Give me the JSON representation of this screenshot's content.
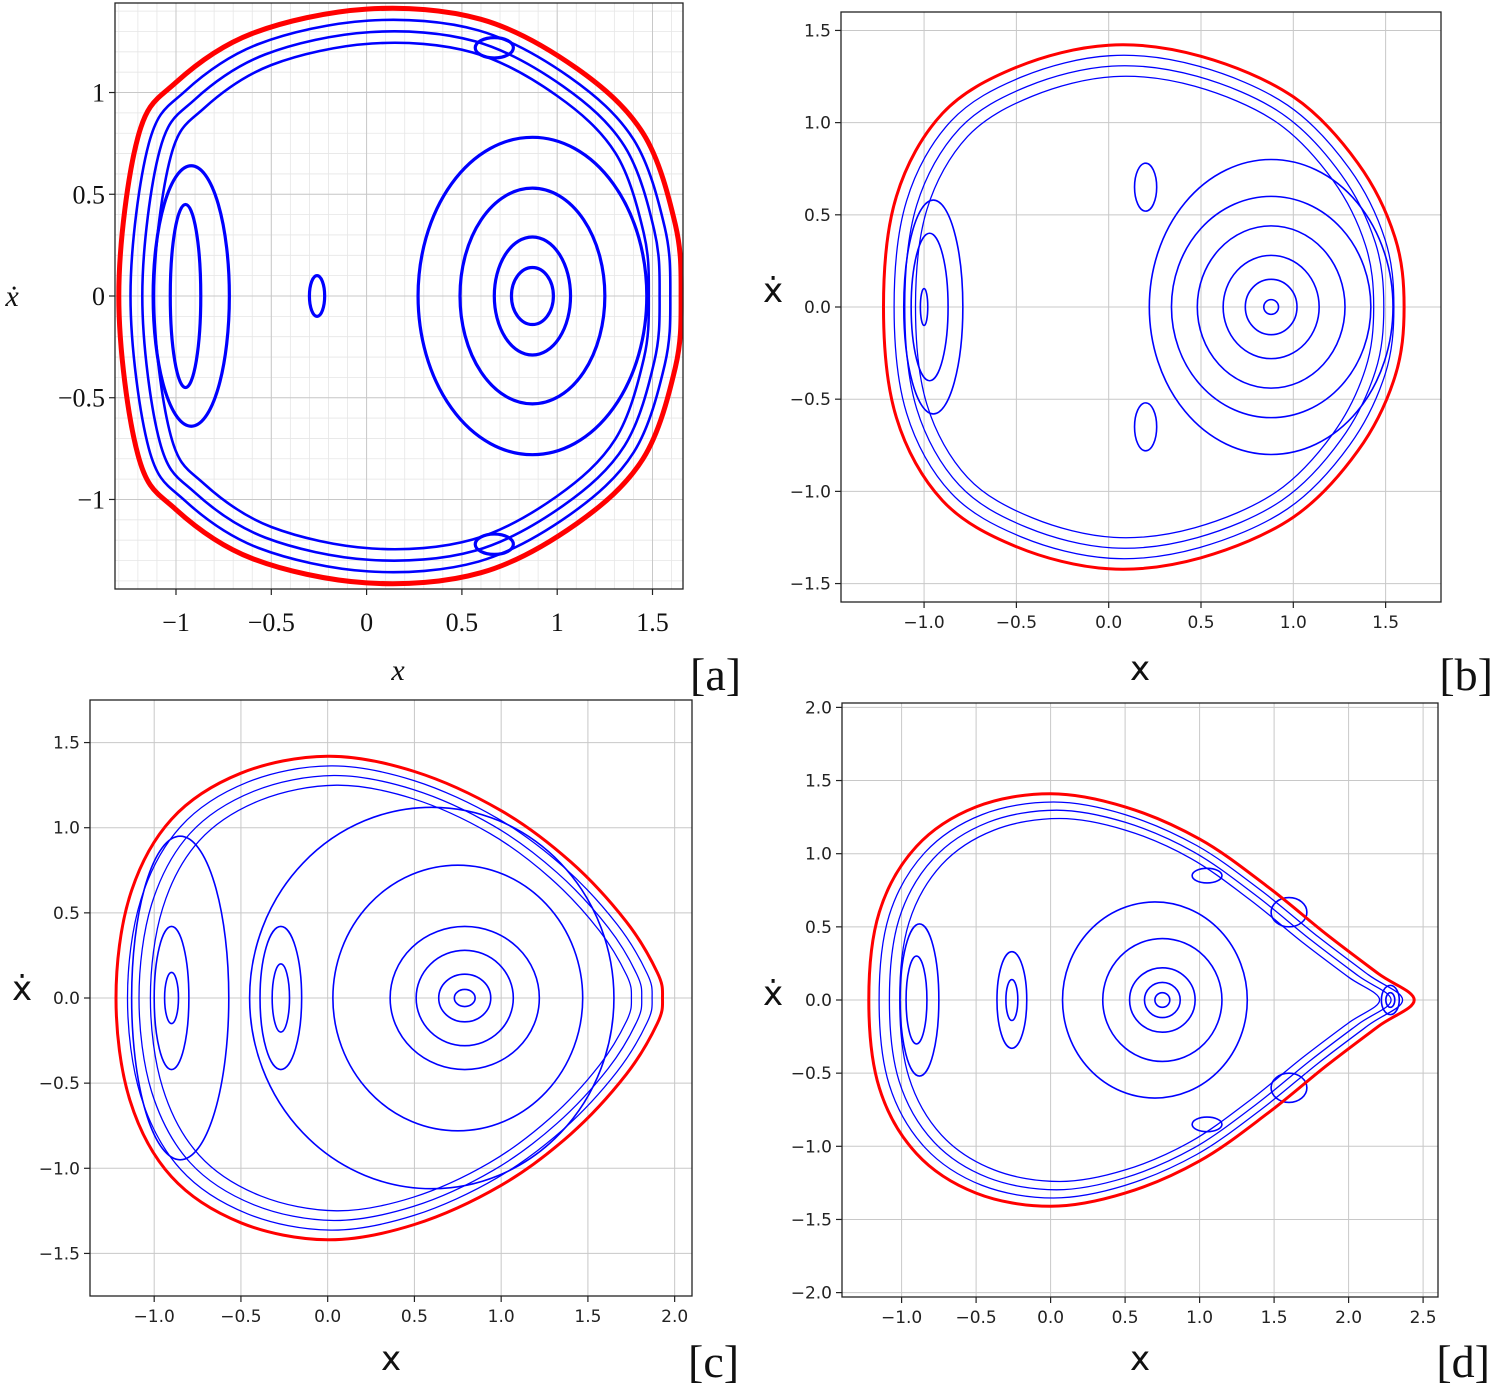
{
  "chart_data": [
    {
      "type": "line",
      "panel_tag": "[a]",
      "style": "serif",
      "xlabel": "x",
      "ylabel": "ẋ",
      "xlim": [
        -1.32,
        1.66
      ],
      "ylim": [
        -1.44,
        1.44
      ],
      "xticks": [
        {
          "v": -1,
          "t": "−1"
        },
        {
          "v": -0.5,
          "t": "−0.5"
        },
        {
          "v": 0,
          "t": "0"
        },
        {
          "v": 0.5,
          "t": "0.5"
        },
        {
          "v": 1,
          "t": "1"
        },
        {
          "v": 1.5,
          "t": "1.5"
        }
      ],
      "yticks": [
        {
          "v": -1,
          "t": "−1"
        },
        {
          "v": -0.5,
          "t": "−0.5"
        },
        {
          "v": 0,
          "t": "0"
        },
        {
          "v": 0.5,
          "t": "0.5"
        },
        {
          "v": 1,
          "t": "1"
        }
      ],
      "grid": "major+minor",
      "boundary": {
        "color": "#ff0000",
        "points": [
          [
            -1.3,
            0
          ],
          [
            -1.2,
            0.78
          ],
          [
            -1.0,
            1.05
          ],
          [
            -0.6,
            1.29
          ],
          [
            0,
            1.41
          ],
          [
            0.6,
            1.36
          ],
          [
            1.1,
            1.12
          ],
          [
            1.45,
            0.8
          ],
          [
            1.62,
            0.35
          ],
          [
            1.65,
            0
          ],
          [
            1.62,
            -0.35
          ],
          [
            1.45,
            -0.8
          ],
          [
            1.1,
            -1.12
          ],
          [
            0.6,
            -1.36
          ],
          [
            0,
            -1.41
          ],
          [
            -0.6,
            -1.29
          ],
          [
            -1.0,
            -1.05
          ],
          [
            -1.2,
            -0.78
          ]
        ]
      },
      "orbits": {
        "color": "#0000ff",
        "islands": [
          {
            "cx": -0.95,
            "cy": 0,
            "rx": 0.08,
            "ry": 0.45
          },
          {
            "cx": -0.92,
            "cy": 0,
            "rx": 0.2,
            "ry": 0.64
          },
          {
            "cx": -0.26,
            "cy": 0,
            "rx": 0.04,
            "ry": 0.1
          },
          {
            "cx": 0.87,
            "cy": 0,
            "rx": 0.11,
            "ry": 0.14
          },
          {
            "cx": 0.87,
            "cy": 0,
            "rx": 0.2,
            "ry": 0.29
          },
          {
            "cx": 0.87,
            "cy": 0,
            "rx": 0.38,
            "ry": 0.53
          },
          {
            "cx": 0.87,
            "cy": 0,
            "rx": 0.6,
            "ry": 0.78
          },
          {
            "cx": 0.67,
            "cy": 1.22,
            "rx": 0.1,
            "ry": 0.05
          },
          {
            "cx": 0.67,
            "cy": -1.22,
            "rx": 0.1,
            "ry": 0.05
          }
        ]
      }
    },
    {
      "type": "line",
      "panel_tag": "[b]",
      "style": "sans",
      "xlabel": "x",
      "ylabel": "ẋ",
      "xlim": [
        -1.45,
        1.8
      ],
      "ylim": [
        -1.6,
        1.6
      ],
      "xticks": [
        {
          "v": -1,
          "t": "−1.0"
        },
        {
          "v": -0.5,
          "t": "−0.5"
        },
        {
          "v": 0,
          "t": "0.0"
        },
        {
          "v": 0.5,
          "t": "0.5"
        },
        {
          "v": 1,
          "t": "1.0"
        },
        {
          "v": 1.5,
          "t": "1.5"
        }
      ],
      "yticks": [
        {
          "v": -1.5,
          "t": "−1.5"
        },
        {
          "v": -1,
          "t": "−1.0"
        },
        {
          "v": -0.5,
          "t": "−0.5"
        },
        {
          "v": 0,
          "t": "0.0"
        },
        {
          "v": 0.5,
          "t": "0.5"
        },
        {
          "v": 1,
          "t": "1.0"
        },
        {
          "v": 1.5,
          "t": "1.5"
        }
      ],
      "grid": "major",
      "boundary": {
        "color": "#ff0000",
        "points": [
          [
            -1.22,
            0
          ],
          [
            -1.15,
            0.6
          ],
          [
            -0.9,
            1.05
          ],
          [
            -0.5,
            1.3
          ],
          [
            0,
            1.42
          ],
          [
            0.5,
            1.36
          ],
          [
            1.0,
            1.14
          ],
          [
            1.35,
            0.78
          ],
          [
            1.55,
            0.38
          ],
          [
            1.6,
            0
          ],
          [
            1.55,
            -0.38
          ],
          [
            1.35,
            -0.78
          ],
          [
            1.0,
            -1.14
          ],
          [
            0.5,
            -1.36
          ],
          [
            0,
            -1.42
          ],
          [
            -0.5,
            -1.3
          ],
          [
            -0.9,
            -1.05
          ],
          [
            -1.15,
            -0.6
          ]
        ]
      },
      "orbits": {
        "color": "#0000ff",
        "islands": [
          {
            "cx": -1.0,
            "cy": 0,
            "rx": 0.02,
            "ry": 0.1
          },
          {
            "cx": -0.97,
            "cy": 0,
            "rx": 0.1,
            "ry": 0.4
          },
          {
            "cx": -0.95,
            "cy": 0,
            "rx": 0.16,
            "ry": 0.58
          },
          {
            "cx": 0.88,
            "cy": 0,
            "rx": 0.04,
            "ry": 0.04
          },
          {
            "cx": 0.88,
            "cy": 0,
            "rx": 0.14,
            "ry": 0.15
          },
          {
            "cx": 0.88,
            "cy": 0,
            "rx": 0.26,
            "ry": 0.28
          },
          {
            "cx": 0.88,
            "cy": 0,
            "rx": 0.4,
            "ry": 0.44
          },
          {
            "cx": 0.88,
            "cy": 0,
            "rx": 0.54,
            "ry": 0.6
          },
          {
            "cx": 0.88,
            "cy": 0,
            "rx": 0.66,
            "ry": 0.8
          },
          {
            "cx": 0.2,
            "cy": 0.65,
            "rx": 0.06,
            "ry": 0.13
          },
          {
            "cx": 0.2,
            "cy": -0.65,
            "rx": 0.06,
            "ry": 0.13
          }
        ]
      }
    },
    {
      "type": "line",
      "panel_tag": "[c]",
      "style": "sans",
      "xlabel": "x",
      "ylabel": "ẋ",
      "xlim": [
        -1.37,
        2.1
      ],
      "ylim": [
        -1.75,
        1.75
      ],
      "xticks": [
        {
          "v": -1,
          "t": "−1.0"
        },
        {
          "v": -0.5,
          "t": "−0.5"
        },
        {
          "v": 0,
          "t": "0.0"
        },
        {
          "v": 0.5,
          "t": "0.5"
        },
        {
          "v": 1,
          "t": "1.0"
        },
        {
          "v": 1.5,
          "t": "1.5"
        },
        {
          "v": 2,
          "t": "2.0"
        }
      ],
      "yticks": [
        {
          "v": -1.5,
          "t": "−1.5"
        },
        {
          "v": -1,
          "t": "−1.0"
        },
        {
          "v": -0.5,
          "t": "−0.5"
        },
        {
          "v": 0,
          "t": "0.0"
        },
        {
          "v": 0.5,
          "t": "0.5"
        },
        {
          "v": 1,
          "t": "1.0"
        },
        {
          "v": 1.5,
          "t": "1.5"
        }
      ],
      "grid": "major",
      "boundary": {
        "color": "#ff0000",
        "points": [
          [
            -1.22,
            0
          ],
          [
            -1.14,
            0.6
          ],
          [
            -0.9,
            1.05
          ],
          [
            -0.5,
            1.32
          ],
          [
            0,
            1.42
          ],
          [
            0.5,
            1.33
          ],
          [
            1.0,
            1.1
          ],
          [
            1.4,
            0.8
          ],
          [
            1.72,
            0.45
          ],
          [
            1.9,
            0.15
          ],
          [
            1.93,
            0
          ],
          [
            1.9,
            -0.15
          ],
          [
            1.72,
            -0.45
          ],
          [
            1.4,
            -0.8
          ],
          [
            1.0,
            -1.1
          ],
          [
            0.5,
            -1.33
          ],
          [
            0,
            -1.42
          ],
          [
            -0.5,
            -1.32
          ],
          [
            -0.9,
            -1.05
          ],
          [
            -1.14,
            -0.6
          ]
        ]
      },
      "orbits": {
        "color": "#0000ff",
        "islands": [
          {
            "cx": -0.9,
            "cy": 0,
            "rx": 0.04,
            "ry": 0.15
          },
          {
            "cx": -0.9,
            "cy": 0,
            "rx": 0.1,
            "ry": 0.42
          },
          {
            "cx": -0.85,
            "cy": 0,
            "rx": 0.28,
            "ry": 0.95
          },
          {
            "cx": -0.27,
            "cy": 0,
            "rx": 0.05,
            "ry": 0.2
          },
          {
            "cx": -0.27,
            "cy": 0,
            "rx": 0.12,
            "ry": 0.42
          },
          {
            "cx": 0.79,
            "cy": 0,
            "rx": 0.06,
            "ry": 0.05
          },
          {
            "cx": 0.79,
            "cy": 0,
            "rx": 0.15,
            "ry": 0.14
          },
          {
            "cx": 0.79,
            "cy": 0,
            "rx": 0.28,
            "ry": 0.28
          },
          {
            "cx": 0.79,
            "cy": 0,
            "rx": 0.43,
            "ry": 0.42
          },
          {
            "cx": 0.75,
            "cy": 0,
            "rx": 0.72,
            "ry": 0.78
          },
          {
            "cx": 0.6,
            "cy": 0,
            "rx": 1.05,
            "ry": 1.12
          }
        ]
      }
    },
    {
      "type": "line",
      "panel_tag": "[d]",
      "style": "sans",
      "xlabel": "x",
      "ylabel": "ẋ",
      "xlim": [
        -1.4,
        2.6
      ],
      "ylim": [
        -2.03,
        2.03
      ],
      "xticks": [
        {
          "v": -1,
          "t": "−1.0"
        },
        {
          "v": -0.5,
          "t": "−0.5"
        },
        {
          "v": 0,
          "t": "0.0"
        },
        {
          "v": 0.5,
          "t": "0.5"
        },
        {
          "v": 1,
          "t": "1.0"
        },
        {
          "v": 1.5,
          "t": "1.5"
        },
        {
          "v": 2,
          "t": "2.0"
        },
        {
          "v": 2.5,
          "t": "2.5"
        }
      ],
      "yticks": [
        {
          "v": -2,
          "t": "−2.0"
        },
        {
          "v": -1.5,
          "t": "−1.5"
        },
        {
          "v": -1,
          "t": "−1.0"
        },
        {
          "v": -0.5,
          "t": "−0.5"
        },
        {
          "v": 0,
          "t": "0.0"
        },
        {
          "v": 0.5,
          "t": "0.5"
        },
        {
          "v": 1,
          "t": "1.0"
        },
        {
          "v": 1.5,
          "t": "1.5"
        },
        {
          "v": 2,
          "t": "2.0"
        }
      ],
      "grid": "major",
      "boundary": {
        "color": "#ff0000",
        "points": [
          [
            -1.22,
            0
          ],
          [
            -1.15,
            0.6
          ],
          [
            -0.9,
            1.05
          ],
          [
            -0.5,
            1.32
          ],
          [
            0,
            1.41
          ],
          [
            0.5,
            1.32
          ],
          [
            1.0,
            1.1
          ],
          [
            1.45,
            0.78
          ],
          [
            1.85,
            0.45
          ],
          [
            2.2,
            0.18
          ],
          [
            2.44,
            0
          ],
          [
            2.2,
            -0.18
          ],
          [
            1.85,
            -0.45
          ],
          [
            1.45,
            -0.78
          ],
          [
            1.0,
            -1.1
          ],
          [
            0.5,
            -1.32
          ],
          [
            0,
            -1.41
          ],
          [
            -0.5,
            -1.32
          ],
          [
            -0.9,
            -1.05
          ],
          [
            -1.15,
            -0.6
          ]
        ]
      },
      "orbits": {
        "color": "#0000ff",
        "islands": [
          {
            "cx": -0.9,
            "cy": 0,
            "rx": 0.07,
            "ry": 0.3
          },
          {
            "cx": -0.88,
            "cy": 0,
            "rx": 0.13,
            "ry": 0.52
          },
          {
            "cx": -0.26,
            "cy": 0,
            "rx": 0.04,
            "ry": 0.14
          },
          {
            "cx": -0.26,
            "cy": 0,
            "rx": 0.1,
            "ry": 0.33
          },
          {
            "cx": 0.75,
            "cy": 0,
            "rx": 0.05,
            "ry": 0.05
          },
          {
            "cx": 0.75,
            "cy": 0,
            "rx": 0.12,
            "ry": 0.12
          },
          {
            "cx": 0.75,
            "cy": 0,
            "rx": 0.22,
            "ry": 0.22
          },
          {
            "cx": 0.75,
            "cy": 0,
            "rx": 0.4,
            "ry": 0.42
          },
          {
            "cx": 0.7,
            "cy": 0,
            "rx": 0.62,
            "ry": 0.67
          },
          {
            "cx": 2.28,
            "cy": 0,
            "rx": 0.03,
            "ry": 0.05
          },
          {
            "cx": 2.28,
            "cy": 0,
            "rx": 0.06,
            "ry": 0.1
          },
          {
            "cx": 1.05,
            "cy": 0.85,
            "rx": 0.1,
            "ry": 0.05
          },
          {
            "cx": 1.05,
            "cy": -0.85,
            "rx": 0.1,
            "ry": 0.05
          },
          {
            "cx": 1.6,
            "cy": 0.6,
            "rx": 0.12,
            "ry": 0.1
          },
          {
            "cx": 1.6,
            "cy": -0.6,
            "rx": 0.12,
            "ry": 0.1
          }
        ]
      }
    }
  ]
}
